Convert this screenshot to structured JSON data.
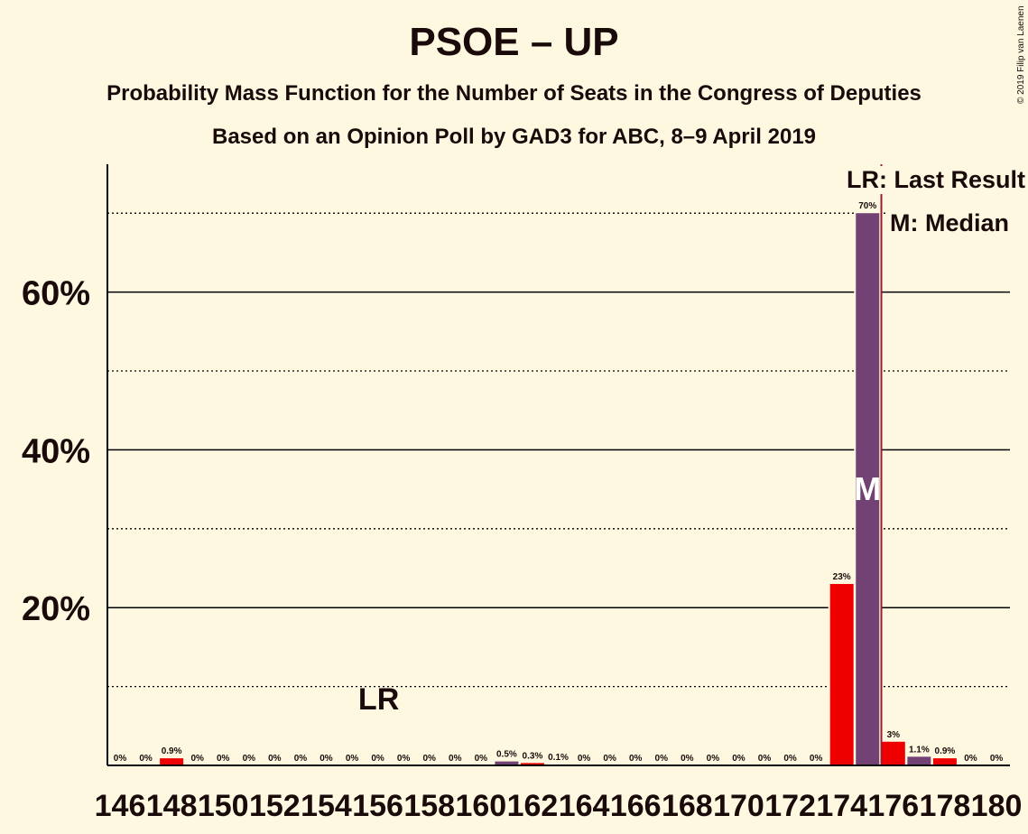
{
  "title": "PSOE – UP",
  "subtitle": "Probability Mass Function for the Number of Seats in the Congress of Deputies",
  "subtitle2": "Based on an Opinion Poll by GAD3 for ABC, 8–9 April 2019",
  "copyright": "© 2019 Filip van Laenen",
  "legend": {
    "last_result": "LR: Last Result",
    "median": "M: Median"
  },
  "markers": {
    "lr_label": "LR",
    "median_label": "M"
  },
  "colors": {
    "background": "#fef8e1",
    "red": "#ee0000",
    "purple": "#714273",
    "lr_line": "#9b1b30",
    "text": "#1a0a0a"
  },
  "chart_data": {
    "type": "bar",
    "x": [
      146,
      147,
      148,
      149,
      150,
      151,
      152,
      153,
      154,
      155,
      156,
      157,
      158,
      159,
      160,
      161,
      162,
      163,
      164,
      165,
      166,
      167,
      168,
      169,
      170,
      171,
      172,
      173,
      174,
      175,
      176,
      177,
      178,
      179,
      180
    ],
    "values": [
      0,
      0,
      0.9,
      0,
      0,
      0,
      0,
      0,
      0,
      0,
      0,
      0,
      0,
      0,
      0,
      0.5,
      0.3,
      0.1,
      0,
      0,
      0,
      0,
      0,
      0,
      0,
      0,
      0,
      0,
      23,
      70,
      3,
      1.1,
      0.9,
      0,
      0
    ],
    "data_labels": [
      "0%",
      "0%",
      "0.9%",
      "0%",
      "0%",
      "0%",
      "0%",
      "0%",
      "0%",
      "0%",
      "0%",
      "0%",
      "0%",
      "0%",
      "0%",
      "0.5%",
      "0.3%",
      "0.1%",
      "0%",
      "0%",
      "0%",
      "0%",
      "0%",
      "0%",
      "0%",
      "0%",
      "0%",
      "0%",
      "23%",
      "70%",
      "3%",
      "1.1%",
      "0.9%",
      "0%",
      "0%"
    ],
    "bar_colors": [
      "red",
      "purple",
      "red",
      "purple",
      "red",
      "purple",
      "red",
      "purple",
      "red",
      "purple",
      "red",
      "purple",
      "red",
      "purple",
      "red",
      "purple",
      "red",
      "purple",
      "red",
      "purple",
      "red",
      "purple",
      "red",
      "purple",
      "red",
      "purple",
      "red",
      "purple",
      "red",
      "purple",
      "red",
      "purple",
      "red",
      "purple",
      "red"
    ],
    "x_tick_labels": [
      "146",
      "148",
      "150",
      "152",
      "154",
      "156",
      "158",
      "160",
      "162",
      "164",
      "166",
      "168",
      "170",
      "172",
      "174",
      "176",
      "178",
      "180"
    ],
    "y_ticks": [
      20,
      40,
      60
    ],
    "y_tick_labels": [
      "20%",
      "40%",
      "60%"
    ],
    "y_minor_gridlines": [
      10,
      30,
      50,
      70
    ],
    "ylim": [
      0,
      76
    ],
    "last_result": 156,
    "median": 175,
    "majority_line": 176
  }
}
